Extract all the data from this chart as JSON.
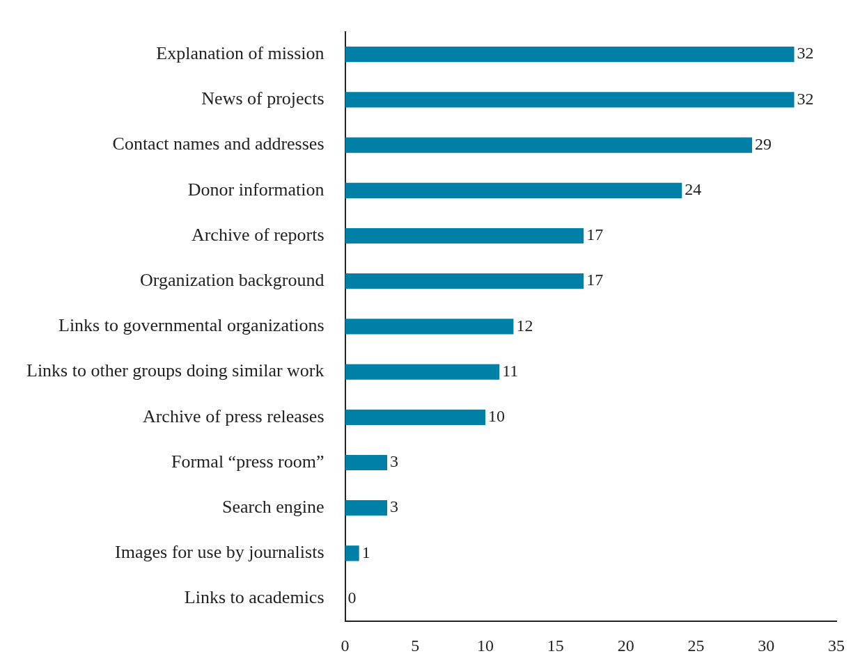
{
  "chart_data": {
    "type": "bar",
    "orientation": "horizontal",
    "categories": [
      "Explanation of mission",
      "News of projects",
      "Contact names and addresses",
      "Donor information",
      "Archive of reports",
      "Organization background",
      "Links to governmental organizations",
      "Links to other groups doing similar work",
      "Archive of press releases",
      "Formal “press room”",
      "Search engine",
      "Images for use by journalists",
      "Links to academics"
    ],
    "values": [
      32,
      32,
      29,
      24,
      17,
      17,
      12,
      11,
      10,
      3,
      3,
      1,
      0
    ],
    "color": "#0080a6",
    "xlim": [
      0,
      35
    ],
    "xticks": [
      0,
      5,
      10,
      15,
      20,
      25,
      30,
      35
    ],
    "grid": false,
    "legend": false,
    "data_labels": true
  }
}
